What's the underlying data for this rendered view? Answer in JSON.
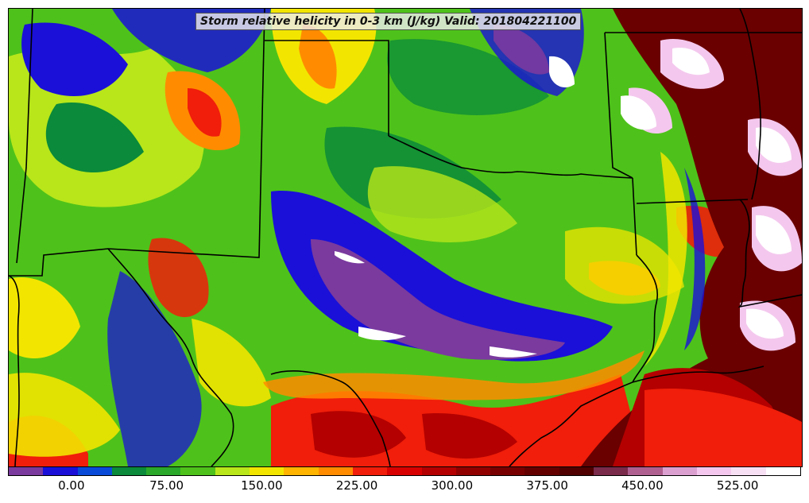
{
  "map": {
    "title": "Storm relative helicity in 0-3 km (J/kg) Valid: 201804221100",
    "units": "J/kg",
    "valid_time": "201804221100",
    "fill_colors": {
      "purple": "#7a3a9e",
      "blue": "#1a10d8",
      "dark_green": "#0a8a3a",
      "green": "#4ec21a",
      "yellow_green": "#b8e61a",
      "yellow": "#f2e600",
      "orange": "#ff8c00",
      "red": "#f01e0a",
      "dark_red": "#b40000",
      "maroon": "#6a0000",
      "pink": "#f4c8ee",
      "white": "#ffffff"
    },
    "border_color": "#000000"
  },
  "colorbar": {
    "segments": [
      "#7a3a9e",
      "#1a10d8",
      "#0a4ad8",
      "#0a8a3a",
      "#2aa82a",
      "#4ec21a",
      "#b8e61a",
      "#f2e600",
      "#ffb400",
      "#ff8c00",
      "#f01e0a",
      "#d80000",
      "#b40000",
      "#900000",
      "#780000",
      "#640000",
      "#500000",
      "#7a2a4a",
      "#b06090",
      "#dca0d0",
      "#f4c8ee",
      "#f8e0f4",
      "#ffffff"
    ],
    "tick_labels": [
      "0.00",
      "75.00",
      "150.00",
      "225.00",
      "300.00",
      "375.00",
      "450.00",
      "525.00"
    ],
    "tick_values": [
      0,
      75,
      150,
      225,
      300,
      375,
      450,
      525
    ],
    "value_range": [
      -50,
      575
    ]
  }
}
